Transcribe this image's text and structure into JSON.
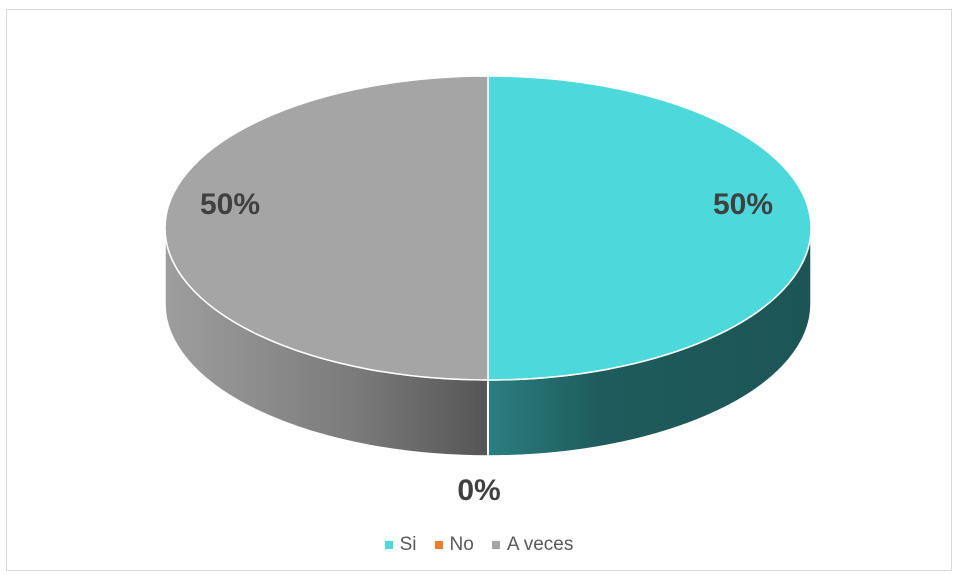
{
  "chart_data": {
    "type": "pie",
    "style": "3d",
    "categories": [
      "Si",
      "No",
      "A veces"
    ],
    "values": [
      50,
      0,
      50
    ],
    "labels": [
      "50%",
      "0%",
      "50%"
    ],
    "colors": [
      "#4DD9DC",
      "#ED7D31",
      "#A5A5A5"
    ],
    "side_colors": [
      "#1F5B5C",
      "#8C4A1D",
      "#6E6E6E"
    ],
    "title": "",
    "legend_position": "bottom"
  }
}
